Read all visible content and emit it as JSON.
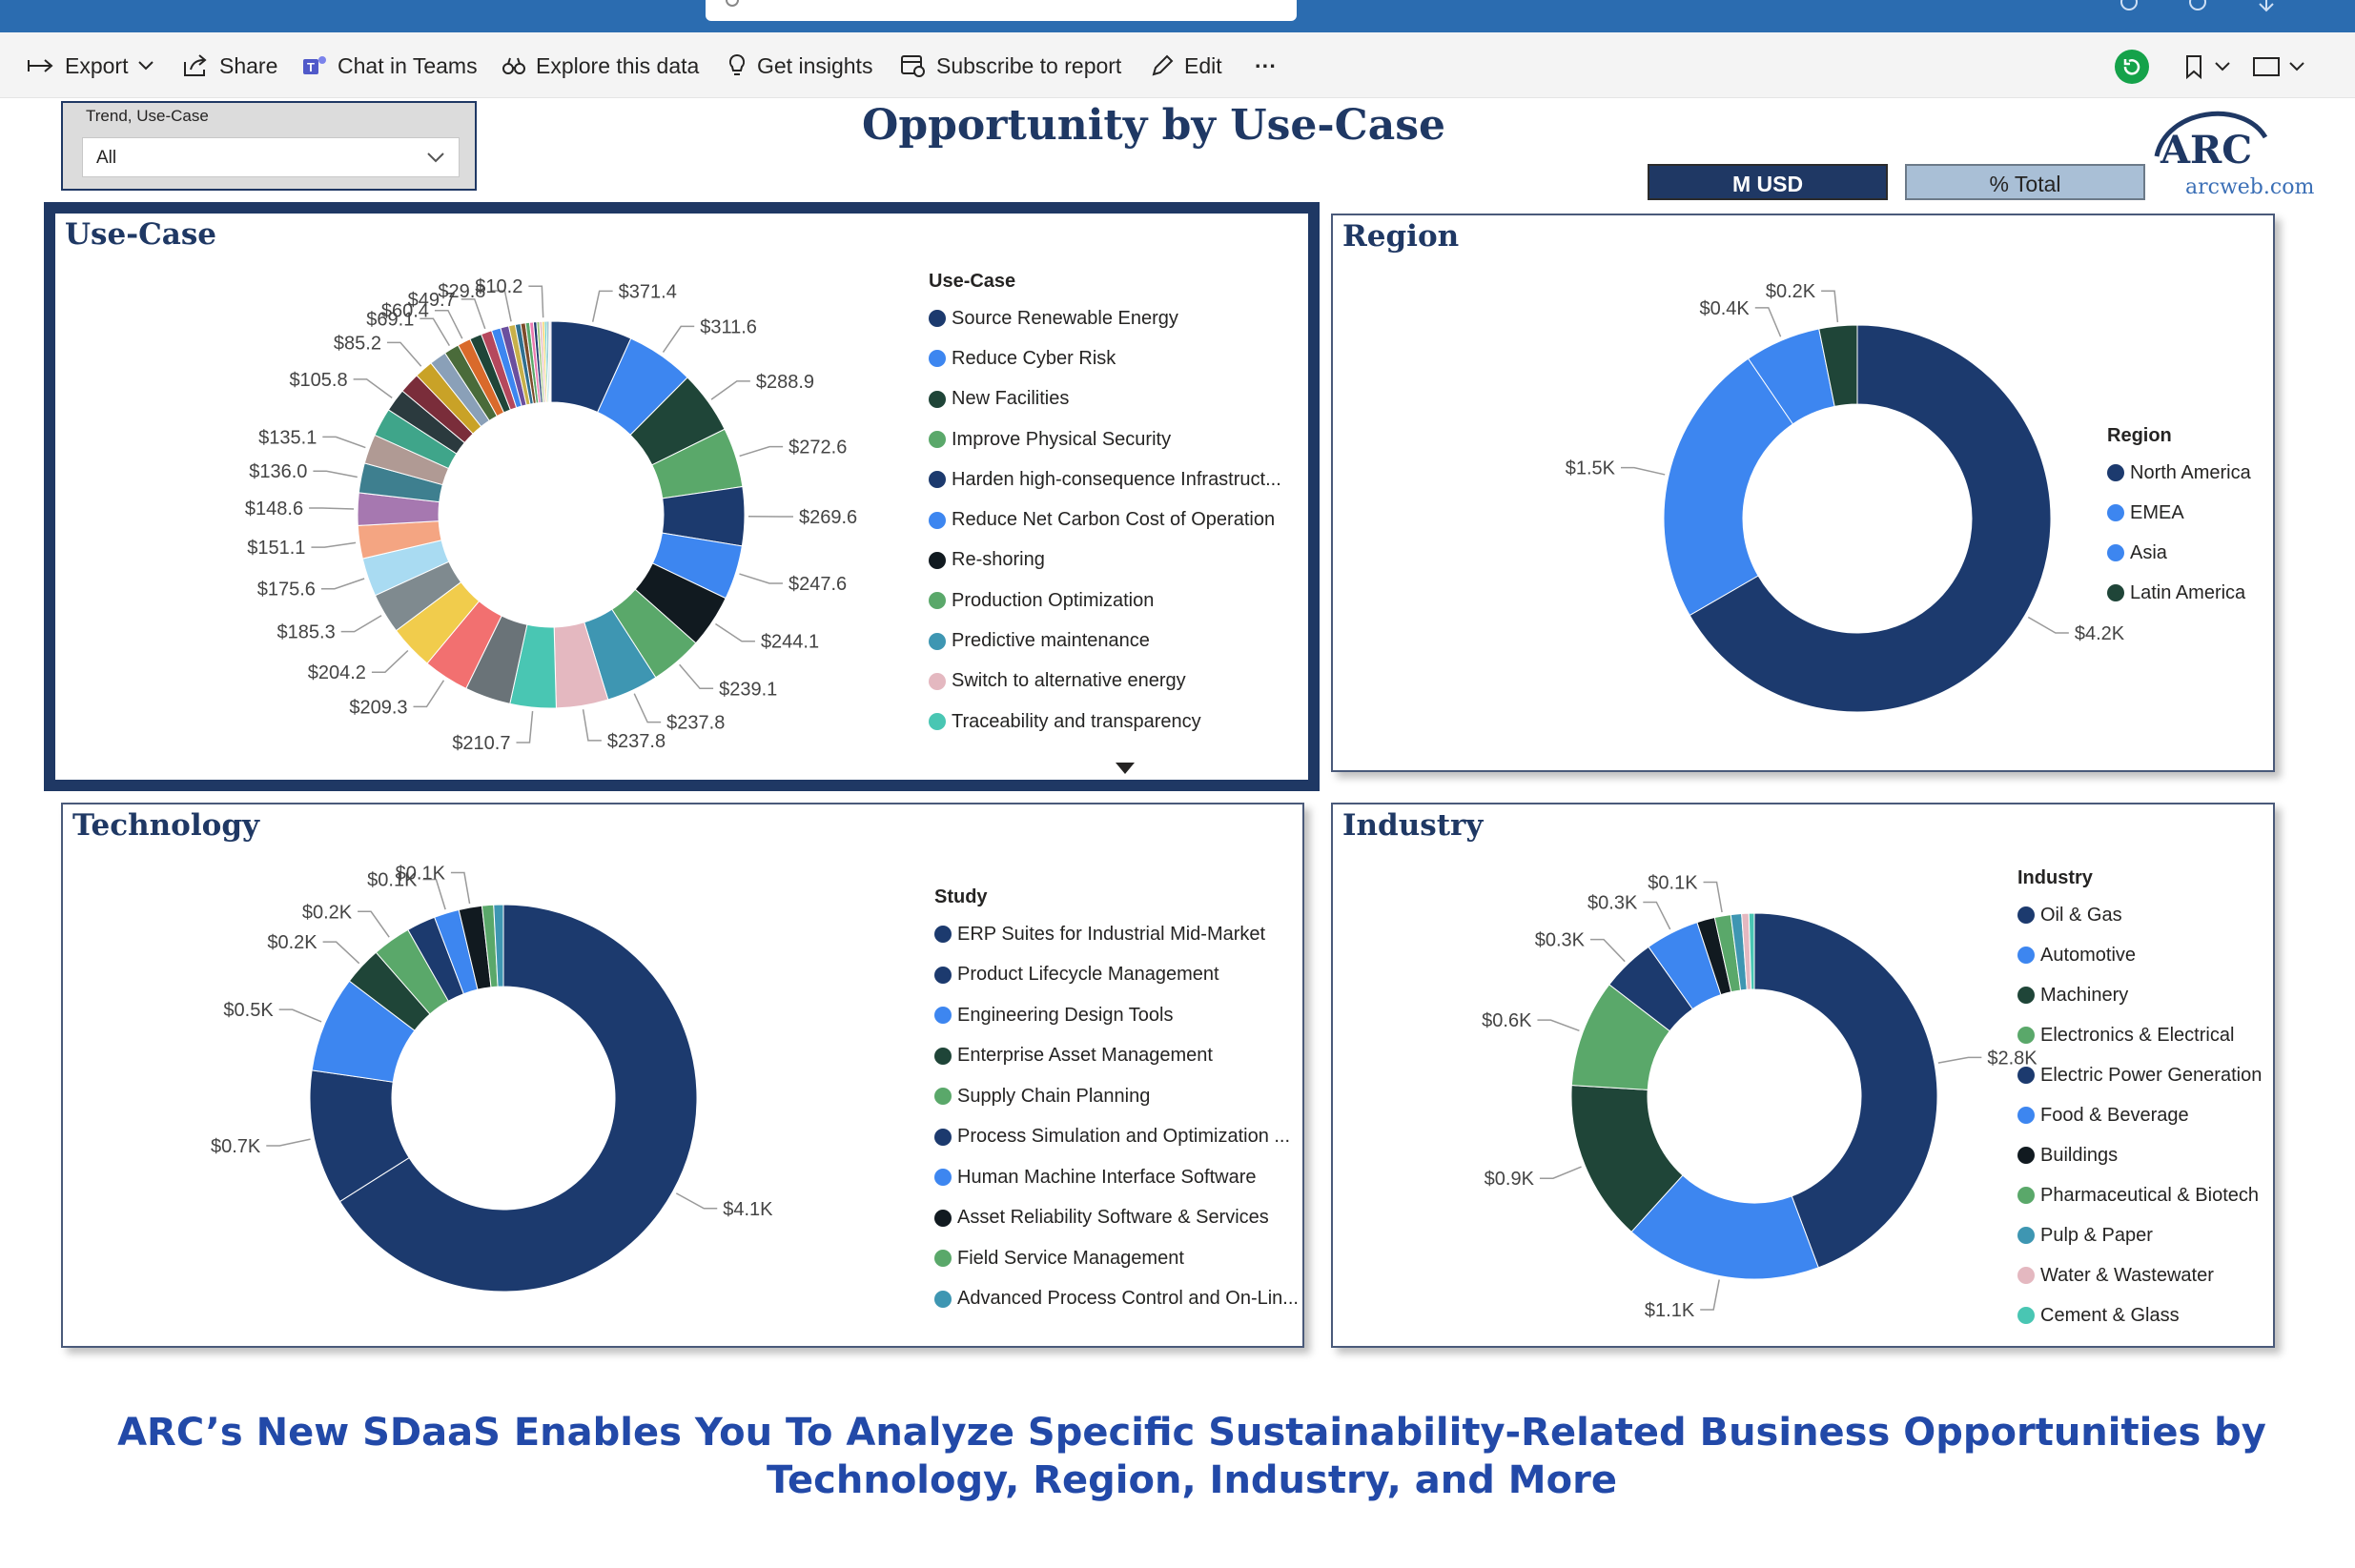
{
  "toolbar": {
    "export": "Export",
    "share": "Share",
    "chat_teams": "Chat in Teams",
    "explore": "Explore this data",
    "insights": "Get insights",
    "subscribe": "Subscribe to report",
    "edit": "Edit",
    "more": "···"
  },
  "slicer": {
    "label": "Trend, Use-Case",
    "value": "All"
  },
  "page_title": "Opportunity by Use-Case",
  "toggles": {
    "musd": "M USD",
    "pct": "% Total"
  },
  "logo": {
    "name": "ARC",
    "site": "arcweb.com"
  },
  "colors": {
    "navy": "#1c3a6e",
    "blue": "#3d86f0",
    "dark_green": "#1f4538",
    "green": "#5aa86a",
    "teal": "#3e96b2",
    "black": "#111a20",
    "pink": "#e4b8c0",
    "mint": "#49c6b3",
    "gray": "#6a7378",
    "salmon": "#f27070",
    "yellow": "#f1cc4c",
    "sky": "#a9dbf2"
  },
  "chart_data": [
    {
      "type": "pie",
      "title": "Use-Case",
      "legend_title": "Use-Case",
      "legend": [
        "Source Renewable Energy",
        "Reduce Cyber Risk",
        "New Facilities",
        "Improve Physical Security",
        "Harden high-consequence Infrastruct...",
        "Reduce Net Carbon Cost of Operation",
        "Re-shoring",
        "Production Optimization",
        "Predictive maintenance",
        "Switch to alternative energy",
        "Traceability and transparency"
      ],
      "slices": [
        {
          "label": "$371.4",
          "value": 371.4,
          "color": "#1c3a6e"
        },
        {
          "label": "$311.6",
          "value": 311.6,
          "color": "#3d86f0"
        },
        {
          "label": "$288.9",
          "value": 288.9,
          "color": "#1f4538"
        },
        {
          "label": "$272.6",
          "value": 272.6,
          "color": "#5aa86a"
        },
        {
          "label": "$269.6",
          "value": 269.6,
          "color": "#1c3a6e"
        },
        {
          "label": "$247.6",
          "value": 247.6,
          "color": "#3d86f0"
        },
        {
          "label": "$244.1",
          "value": 244.1,
          "color": "#111a20"
        },
        {
          "label": "$239.1",
          "value": 239.1,
          "color": "#5aa86a"
        },
        {
          "label": "$237.8",
          "value": 237.8,
          "color": "#3e96b2"
        },
        {
          "label": "$237.8",
          "value": 237.8,
          "color": "#e4b8c0"
        },
        {
          "label": "$210.7",
          "value": 210.7,
          "color": "#49c6b3"
        },
        {
          "label": "",
          "value": 210.0,
          "color": "#6a7378"
        },
        {
          "label": "$209.3",
          "value": 209.3,
          "color": "#f27070"
        },
        {
          "label": "$204.2",
          "value": 204.2,
          "color": "#f1cc4c"
        },
        {
          "label": "$185.3",
          "value": 185.3,
          "color": "#7f8a8f"
        },
        {
          "label": "$175.6",
          "value": 175.6,
          "color": "#a9dbf2"
        },
        {
          "label": "$151.1",
          "value": 151.1,
          "color": "#f4a582"
        },
        {
          "label": "$148.6",
          "value": 148.6,
          "color": "#a678b0"
        },
        {
          "label": "$136.0",
          "value": 136.0,
          "color": "#3e7f8f"
        },
        {
          "label": "$135.1",
          "value": 135.1,
          "color": "#b09a94"
        },
        {
          "label": "",
          "value": 130.0,
          "color": "#3fa58a"
        },
        {
          "label": "$105.8",
          "value": 105.8,
          "color": "#2b3a3e"
        },
        {
          "label": "",
          "value": 95.0,
          "color": "#7a2d3a"
        },
        {
          "label": "$85.2",
          "value": 85.2,
          "color": "#c9a227"
        },
        {
          "label": "",
          "value": 78.0,
          "color": "#8aa0b8"
        },
        {
          "label": "$69.1",
          "value": 69.1,
          "color": "#4a6b3a"
        },
        {
          "label": "$60.4",
          "value": 60.4,
          "color": "#d96a2b"
        },
        {
          "label": "",
          "value": 55.0,
          "color": "#1f4538"
        },
        {
          "label": "$49.7",
          "value": 49.7,
          "color": "#b5485d"
        },
        {
          "label": "",
          "value": 42.0,
          "color": "#3d86f0"
        },
        {
          "label": "",
          "value": 38.0,
          "color": "#6b4f9e"
        },
        {
          "label": "$29.8",
          "value": 29.8,
          "color": "#c8b04a"
        },
        {
          "label": "",
          "value": 25.0,
          "color": "#2f6f8f"
        },
        {
          "label": "",
          "value": 22.0,
          "color": "#7d4b2a"
        },
        {
          "label": "",
          "value": 19.0,
          "color": "#5aa86a"
        },
        {
          "label": "",
          "value": 17.0,
          "color": "#ea7ab0"
        },
        {
          "label": "",
          "value": 15.0,
          "color": "#1c3a6e"
        },
        {
          "label": "",
          "value": 13.0,
          "color": "#9bc47a"
        },
        {
          "label": "",
          "value": 12.0,
          "color": "#e4b8c0"
        },
        {
          "label": "$10.2",
          "value": 10.2,
          "color": "#f1cc4c"
        },
        {
          "label": "",
          "value": 9.0,
          "color": "#49c6b3"
        },
        {
          "label": "",
          "value": 8.0,
          "color": "#3e96b2"
        },
        {
          "label": "",
          "value": 7.0,
          "color": "#b8b8b8"
        },
        {
          "label": "",
          "value": 6.0,
          "color": "#d8c9e8"
        }
      ]
    },
    {
      "type": "pie",
      "title": "Region",
      "legend_title": "Region",
      "legend": [
        "North America",
        "EMEA",
        "Asia",
        "Latin America"
      ],
      "slices": [
        {
          "label": "$4.2K",
          "value": 4200,
          "color": "#1c3a6e"
        },
        {
          "label": "$1.5K",
          "value": 1500,
          "color": "#3d86f0"
        },
        {
          "label": "$0.4K",
          "value": 400,
          "color": "#3d86f0"
        },
        {
          "label": "$0.2K",
          "value": 200,
          "color": "#1f4538"
        }
      ]
    },
    {
      "type": "pie",
      "title": "Technology",
      "legend_title": "Study",
      "legend": [
        "ERP Suites for Industrial Mid-Market",
        "Product Lifecycle Management",
        "Engineering Design Tools",
        "Enterprise Asset Management",
        "Supply Chain Planning",
        "Process Simulation and Optimization ...",
        "Human Machine Interface Software",
        "Asset Reliability Software & Services",
        "Field Service Management",
        "Advanced Process Control and On-Lin..."
      ],
      "slices": [
        {
          "label": "$4.1K",
          "value": 4100,
          "color": "#1c3a6e"
        },
        {
          "label": "$0.7K",
          "value": 700,
          "color": "#1c3a6e"
        },
        {
          "label": "$0.5K",
          "value": 500,
          "color": "#3d86f0"
        },
        {
          "label": "$0.2K",
          "value": 200,
          "color": "#1f4538"
        },
        {
          "label": "$0.2K",
          "value": 200,
          "color": "#5aa86a"
        },
        {
          "label": "",
          "value": 150,
          "color": "#1c3a6e"
        },
        {
          "label": "$0.1K",
          "value": 130,
          "color": "#3d86f0"
        },
        {
          "label": "$0.1K",
          "value": 120,
          "color": "#111a20"
        },
        {
          "label": "",
          "value": 60,
          "color": "#5aa86a"
        },
        {
          "label": "",
          "value": 50,
          "color": "#3e96b2"
        }
      ]
    },
    {
      "type": "pie",
      "title": "Industry",
      "legend_title": "Industry",
      "legend": [
        "Oil & Gas",
        "Automotive",
        "Machinery",
        "Electronics & Electrical",
        "Electric Power Generation",
        "Food & Beverage",
        "Buildings",
        "Pharmaceutical & Biotech",
        "Pulp & Paper",
        "Water & Wastewater",
        "Cement & Glass"
      ],
      "slices": [
        {
          "label": "$2.8K",
          "value": 2800,
          "color": "#1c3a6e"
        },
        {
          "label": "$1.1K",
          "value": 1100,
          "color": "#3d86f0"
        },
        {
          "label": "$0.9K",
          "value": 900,
          "color": "#1f4538"
        },
        {
          "label": "$0.6K",
          "value": 600,
          "color": "#5aa86a"
        },
        {
          "label": "$0.3K",
          "value": 300,
          "color": "#1c3a6e"
        },
        {
          "label": "$0.3K",
          "value": 300,
          "color": "#3d86f0"
        },
        {
          "label": "",
          "value": 100,
          "color": "#111a20"
        },
        {
          "label": "$0.1K",
          "value": 90,
          "color": "#5aa86a"
        },
        {
          "label": "",
          "value": 60,
          "color": "#3e96b2"
        },
        {
          "label": "",
          "value": 40,
          "color": "#e4b8c0"
        },
        {
          "label": "",
          "value": 30,
          "color": "#49c6b3"
        }
      ]
    }
  ],
  "caption": {
    "line1": "ARC’s New SDaaS Enables You To Analyze Specific Sustainability-Related Business Opportunities by",
    "line2": "Technology, Region, Industry, and More"
  }
}
